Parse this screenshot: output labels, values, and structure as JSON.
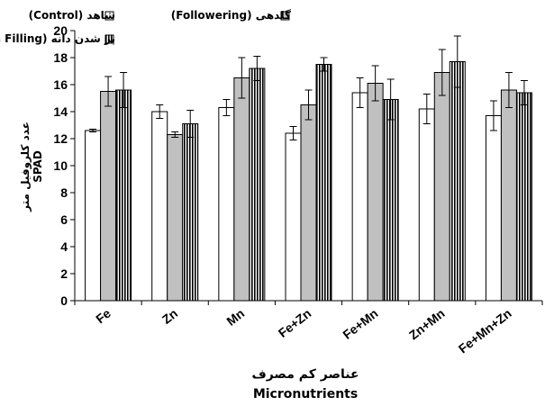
{
  "chart_data": {
    "type": "bar",
    "categories": [
      "Fe",
      "Zn",
      "Mn",
      "Fe+Zn",
      "Fe+Mn",
      "Zn+Mn",
      "Fe+Mn+Zn"
    ],
    "series": [
      {
        "name": "شاهد (Control)",
        "values": [
          12.6,
          14.0,
          14.3,
          12.4,
          15.4,
          14.2,
          13.7
        ],
        "errors": [
          0.1,
          0.5,
          0.6,
          0.5,
          1.1,
          1.1,
          1.1
        ],
        "color": "#ffffff",
        "pattern": "none"
      },
      {
        "name": "گلدهی (Followering)",
        "values": [
          15.5,
          12.3,
          16.5,
          14.5,
          16.1,
          16.9,
          15.6
        ],
        "errors": [
          1.1,
          0.2,
          1.5,
          1.1,
          1.3,
          1.7,
          1.3
        ],
        "color": "#c0c0c0",
        "pattern": "none"
      },
      {
        "name": "پر شدن دانه (Grain Filling)",
        "values": [
          15.6,
          13.1,
          17.2,
          17.5,
          14.9,
          17.7,
          15.4
        ],
        "errors": [
          1.3,
          1.0,
          0.9,
          0.5,
          1.5,
          1.9,
          0.9
        ],
        "color": "#ffffff",
        "pattern": "vertical-stripes"
      }
    ],
    "ylim": [
      0,
      20
    ],
    "yticks": [
      "0",
      "2",
      "4",
      "6",
      "8",
      "10",
      "12",
      "14",
      "16",
      "18",
      "20"
    ],
    "ylabel": [
      "عدد کلروفیل متر",
      "SPAD"
    ],
    "xlabel": [
      "عناصر کم مصرف",
      "Micronutrients"
    ],
    "legend_position": "top",
    "grid": false
  }
}
